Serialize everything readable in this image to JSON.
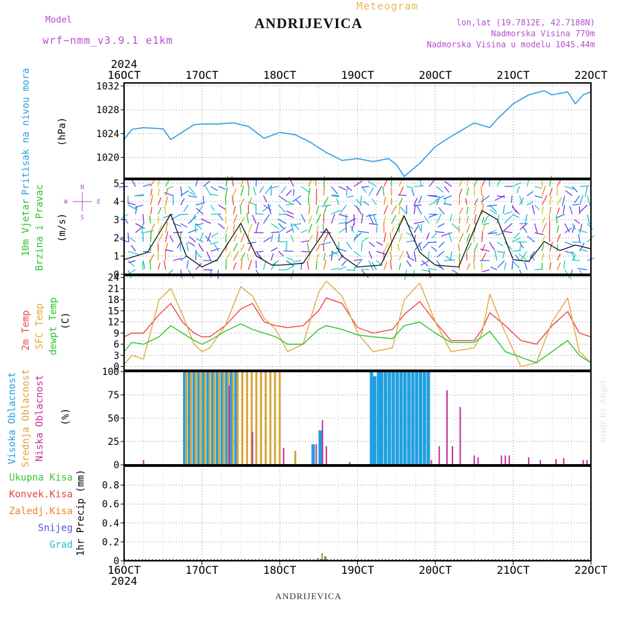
{
  "header": {
    "title": "ANDRIJEVICA",
    "subtitle": "Meteogram",
    "model_label": "Model",
    "model_name": "wrf−nmm_v3.9.1  e1km",
    "info_lines": [
      "lon,lat (19.7812E, 42.7188N)",
      "Nadmorska Visina 779m",
      "Nadmorska Visina u modelu 1045.44m"
    ]
  },
  "footer": {
    "station": "ANDRIJEVICA",
    "credit": "made by Angel"
  },
  "colors": {
    "pressure": "#2a9fe0",
    "temp2m": "#ec4646",
    "sfc": "#e0a940",
    "dewpt": "#2ec22e",
    "high": "#20a0e0",
    "mid": "#d9a53a",
    "low": "#c0309a",
    "precip_total": "#3ac43a",
    "precip_conv": "#e84040",
    "precip_frozen": "#f08030",
    "snow": "#5050e0",
    "hail": "#20c0c0",
    "axis_purple": "#b34fcf"
  },
  "chart_data": [
    {
      "type": "line",
      "id": "pressure",
      "x_ticks": [
        "16OCT",
        "17OCT",
        "18OCT",
        "19OCT",
        "20OCT",
        "21OCT",
        "22OCT"
      ],
      "x_year": "2024",
      "ylabel": [
        "Pritisak na nivou mora",
        "(hPa)"
      ],
      "ylim": [
        1016.5,
        1032.5
      ],
      "yticks": [
        1020,
        1024,
        1028,
        1032
      ],
      "grid": true,
      "series": [
        {
          "color_key": "pressure",
          "x": [
            0,
            0.1,
            0.25,
            0.5,
            0.6,
            0.9,
            1.0,
            1.2,
            1.4,
            1.6,
            1.8,
            2.0,
            2.2,
            2.4,
            2.6,
            2.8,
            3.0,
            3.2,
            3.4,
            3.5,
            3.6,
            3.8,
            4.0,
            4.2,
            4.5,
            4.7,
            4.8,
            5.0,
            5.2,
            5.4,
            5.5,
            5.7,
            5.8,
            5.9,
            6.0
          ],
          "values": [
            1023.0,
            1024.7,
            1025.0,
            1024.8,
            1023.0,
            1025.5,
            1025.6,
            1025.6,
            1025.8,
            1025.2,
            1023.2,
            1024.2,
            1023.8,
            1022.5,
            1020.8,
            1019.5,
            1019.8,
            1019.3,
            1019.8,
            1018.8,
            1016.8,
            1019.0,
            1021.8,
            1023.5,
            1025.8,
            1025.0,
            1026.5,
            1029.0,
            1030.5,
            1031.2,
            1030.5,
            1031.0,
            1029.0,
            1030.5,
            1031.0
          ]
        }
      ]
    },
    {
      "type": "scatter",
      "id": "wind",
      "ylabel": [
        "10m  Vjetar",
        "Brzina i Pravac",
        "(m/s)"
      ],
      "compass": {
        "n": "N",
        "w": "W",
        "e": "E",
        "s": "S"
      },
      "ylim": [
        0,
        5.2
      ],
      "yticks": [
        0,
        1,
        2,
        3,
        4,
        5
      ],
      "grid": true,
      "speed": {
        "x": [
          0,
          0.3,
          0.6,
          0.8,
          1.0,
          1.2,
          1.5,
          1.7,
          1.9,
          2.0,
          2.3,
          2.6,
          2.8,
          3.0,
          3.3,
          3.6,
          3.8,
          4.0,
          4.3,
          4.6,
          4.8,
          5.0,
          5.2,
          5.4,
          5.6,
          5.8,
          6.0
        ],
        "values": [
          0.8,
          1.2,
          3.3,
          1.0,
          0.4,
          0.8,
          2.8,
          1.0,
          0.5,
          0.5,
          0.6,
          2.5,
          1.0,
          0.4,
          0.5,
          3.2,
          1.2,
          0.5,
          0.4,
          3.5,
          3.0,
          0.8,
          0.7,
          1.8,
          1.3,
          1.6,
          1.4
        ]
      },
      "barbs": "wind direction arrows"
    },
    {
      "type": "line",
      "id": "temperature",
      "ylabel": [
        "2m Temp",
        "SFC Temp",
        "dewpt Temp",
        "(C)"
      ],
      "ylim": [
        -1,
        24.5
      ],
      "yticks": [
        0,
        3,
        6,
        9,
        12,
        15,
        18,
        21,
        24
      ],
      "grid": true,
      "series": [
        {
          "name": "2m Temp",
          "color_key": "temp2m",
          "x": [
            0,
            0.1,
            0.25,
            0.45,
            0.6,
            0.75,
            0.9,
            1.0,
            1.1,
            1.3,
            1.5,
            1.65,
            1.8,
            1.95,
            2.1,
            2.3,
            2.5,
            2.6,
            2.8,
            3.0,
            3.2,
            3.45,
            3.6,
            3.8,
            4.0,
            4.2,
            4.5,
            4.6,
            4.7,
            4.9,
            5.1,
            5.3,
            5.5,
            5.7,
            5.85,
            6.0
          ],
          "values": [
            8,
            9,
            9,
            14,
            17,
            12,
            9,
            8,
            8,
            11,
            15.5,
            17,
            12,
            11,
            10.5,
            11,
            15,
            18.5,
            17,
            10.5,
            9,
            10,
            14,
            17.5,
            12,
            7,
            7,
            10,
            14.5,
            11,
            7,
            6,
            11,
            14.8,
            9,
            8
          ]
        },
        {
          "name": "SFC Temp",
          "color_key": "sfc",
          "x": [
            0,
            0.1,
            0.25,
            0.45,
            0.6,
            0.75,
            0.9,
            1.0,
            1.1,
            1.3,
            1.5,
            1.65,
            1.8,
            1.95,
            2.1,
            2.3,
            2.5,
            2.6,
            2.8,
            3.0,
            3.2,
            3.45,
            3.6,
            3.8,
            4.0,
            4.2,
            4.5,
            4.6,
            4.7,
            4.9,
            5.1,
            5.3,
            5.5,
            5.7,
            5.85,
            6.0
          ],
          "values": [
            0.5,
            3,
            2,
            18,
            21,
            14,
            6,
            4,
            5,
            11,
            21.5,
            19,
            13,
            10,
            4,
            6,
            20,
            23,
            19,
            9,
            4,
            5,
            18,
            22.5,
            12,
            4,
            5,
            9,
            19.5,
            9,
            0,
            1,
            12,
            18.5,
            4,
            1
          ]
        },
        {
          "name": "dewpt Temp",
          "color_key": "dewpt",
          "x": [
            0,
            0.1,
            0.25,
            0.45,
            0.6,
            0.75,
            0.9,
            1.0,
            1.1,
            1.3,
            1.5,
            1.65,
            1.8,
            1.95,
            2.1,
            2.3,
            2.5,
            2.6,
            2.8,
            3.0,
            3.2,
            3.45,
            3.6,
            3.8,
            4.0,
            4.2,
            4.5,
            4.6,
            4.7,
            4.9,
            5.1,
            5.3,
            5.5,
            5.7,
            5.85,
            6.0
          ],
          "values": [
            4,
            6.5,
            6,
            8,
            11,
            9,
            7,
            6,
            7,
            9.5,
            11.5,
            10,
            9,
            8,
            6,
            6,
            10,
            11,
            10,
            8.5,
            8,
            7.5,
            11,
            12,
            9,
            6.5,
            6.5,
            8,
            9.5,
            4,
            2.5,
            1,
            4,
            7,
            3,
            1
          ]
        }
      ]
    },
    {
      "type": "bar",
      "id": "clouds",
      "ylabel": [
        "Visoka Oblacnost",
        "Srednja Oblacnost",
        "Niska  Oblacnost",
        "(%)"
      ],
      "ylim": [
        0,
        100
      ],
      "yticks": [
        0,
        25,
        50,
        75,
        100
      ],
      "grid": true,
      "series": [
        {
          "name": "Visoka Oblacnost",
          "color_key": "high",
          "x": [
            0.78,
            0.84,
            0.9,
            0.96,
            1.02,
            1.08,
            1.14,
            1.2,
            1.26,
            1.32,
            1.38,
            1.44,
            2.43,
            2.52,
            3.18,
            3.22,
            3.27,
            3.31,
            3.36,
            3.41,
            3.46,
            3.51,
            3.56,
            3.61,
            3.66,
            3.71,
            3.76,
            3.81,
            3.86,
            3.91
          ],
          "values": [
            100,
            100,
            100,
            100,
            100,
            100,
            100,
            100,
            100,
            100,
            100,
            100,
            22,
            37,
            100,
            95,
            100,
            100,
            100,
            100,
            100,
            100,
            100,
            100,
            100,
            100,
            100,
            100,
            100,
            100
          ]
        },
        {
          "name": "Srednja Oblacnost",
          "color_key": "mid",
          "x": [
            0.8,
            0.86,
            0.92,
            0.98,
            1.04,
            1.1,
            1.16,
            1.22,
            1.28,
            1.34,
            1.4,
            1.46,
            1.52,
            1.58,
            1.64,
            1.7,
            1.76,
            1.82,
            1.88,
            1.94,
            2.0,
            2.2
          ],
          "values": [
            100,
            100,
            100,
            100,
            100,
            100,
            100,
            100,
            100,
            100,
            100,
            100,
            100,
            100,
            100,
            100,
            100,
            100,
            100,
            100,
            100,
            15
          ]
        },
        {
          "name": "Niska  Oblacnost",
          "color_key": "low",
          "x": [
            0.25,
            1.35,
            1.65,
            2.05,
            2.47,
            2.55,
            2.6,
            2.9,
            3.95,
            4.05,
            4.15,
            4.22,
            4.32,
            4.5,
            4.55,
            4.85,
            4.9,
            4.95,
            5.2,
            5.35,
            5.55,
            5.65,
            5.9,
            5.95
          ],
          "values": [
            5,
            85,
            35,
            18,
            22,
            48,
            20,
            3,
            5,
            20,
            80,
            20,
            62,
            10,
            8,
            10,
            10,
            10,
            8,
            5,
            6,
            7,
            5,
            5
          ]
        }
      ]
    },
    {
      "type": "bar",
      "id": "precip",
      "ylabel": [
        "1hr Precip (mm)"
      ],
      "legend": [
        "Ukupna  Kisa",
        "Konvek.Kisa",
        "Zaledj.Kisa",
        "Snijeg",
        "Grad"
      ],
      "ylim": [
        0,
        1.0
      ],
      "yticks": [
        0,
        0.2,
        0.4,
        0.6,
        0.8
      ],
      "grid": true,
      "series": [
        {
          "name": "Ukupna  Kisa",
          "color_key": "precip_total",
          "x": [
            2.5,
            2.55,
            2.6,
            3.75,
            4.05,
            4.15
          ],
          "values": [
            0.03,
            0.08,
            0.04,
            0.01,
            0.01,
            0.01
          ]
        },
        {
          "name": "Konvek.Kisa",
          "color_key": "precip_conv",
          "x": [
            2.52,
            2.57
          ],
          "values": [
            0.02,
            0.05
          ]
        }
      ]
    }
  ]
}
